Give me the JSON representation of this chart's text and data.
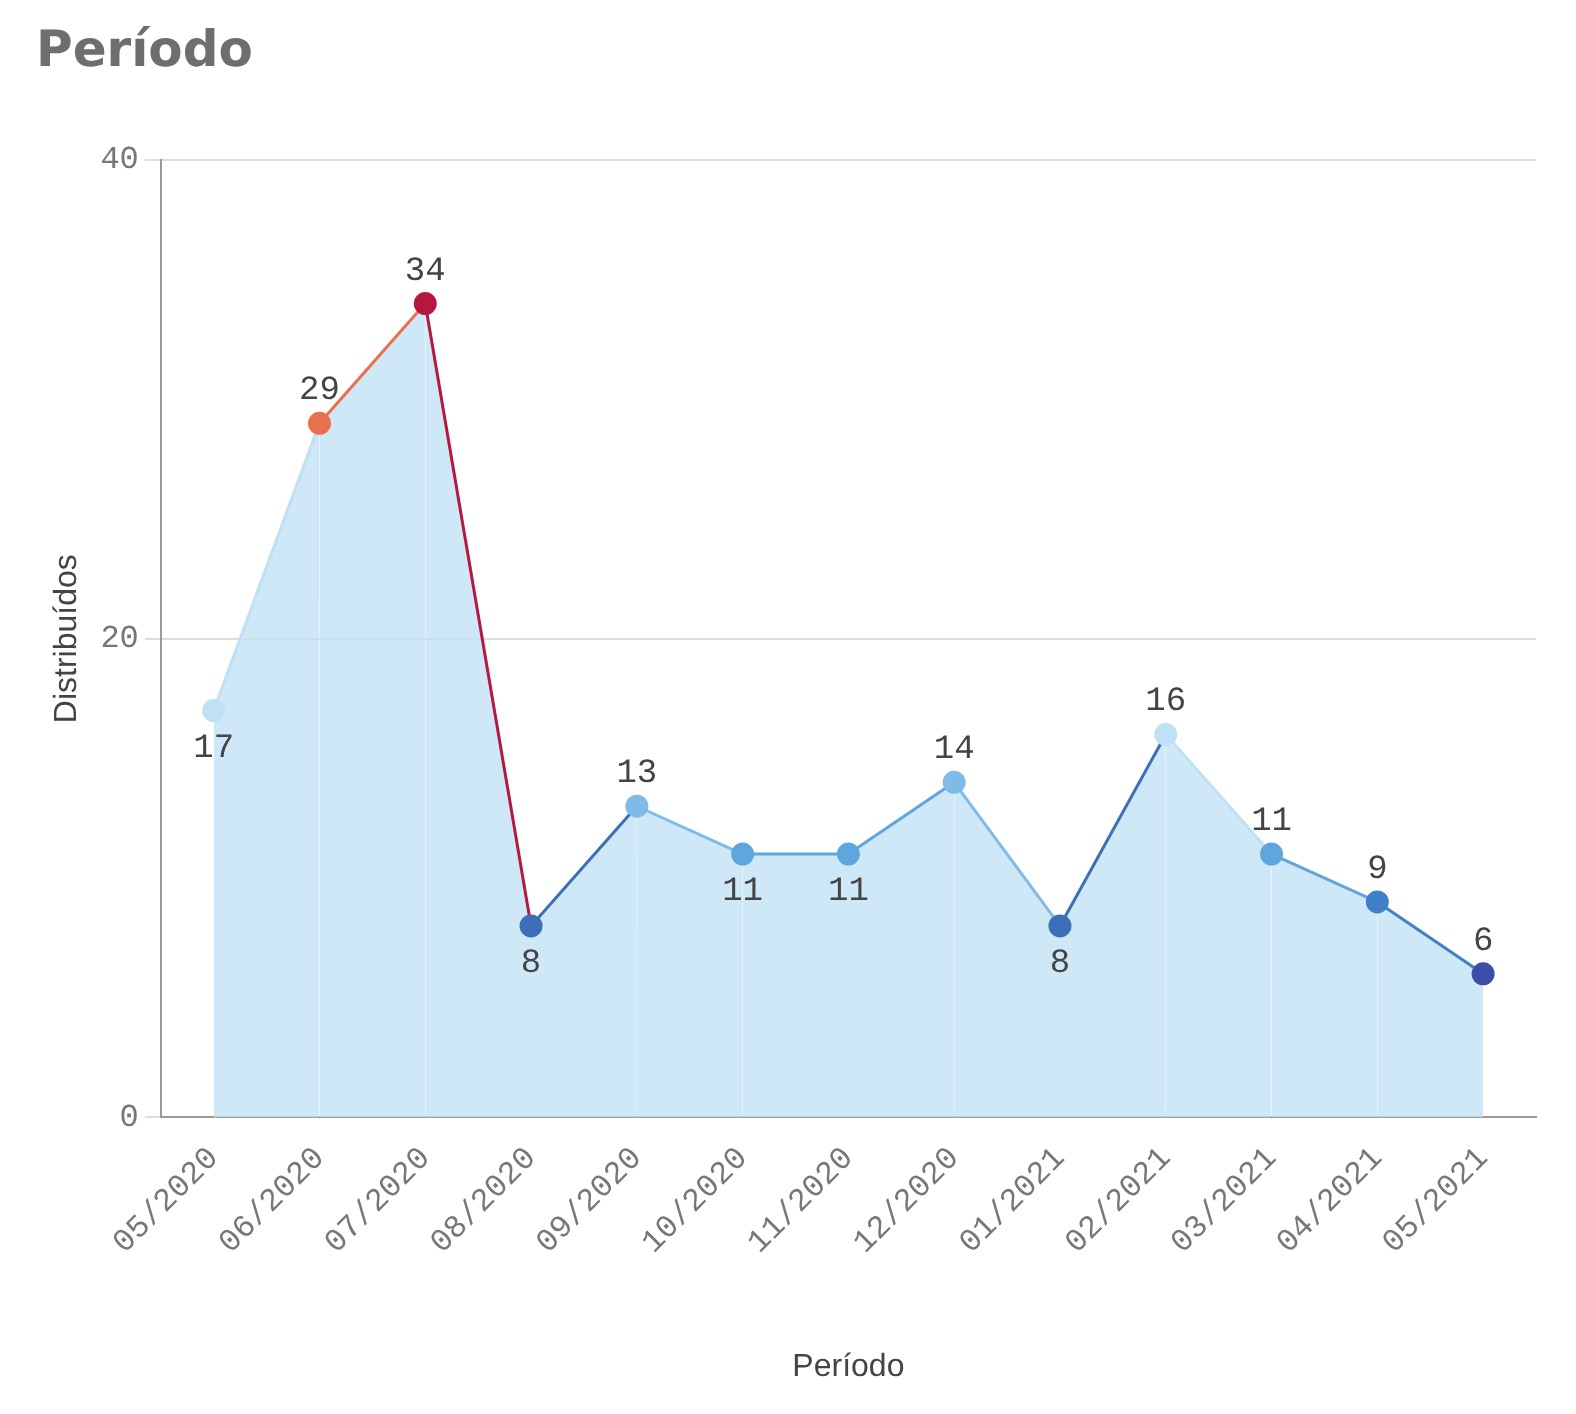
{
  "chart_data": {
    "type": "area",
    "title": "Período",
    "xlabel": "Período",
    "ylabel": "Distribuídos",
    "categories": [
      "05/2020",
      "06/2020",
      "07/2020",
      "08/2020",
      "09/2020",
      "10/2020",
      "11/2020",
      "12/2020",
      "01/2021",
      "02/2021",
      "03/2021",
      "04/2021",
      "05/2021"
    ],
    "values": [
      17,
      29,
      34,
      8,
      13,
      11,
      11,
      14,
      8,
      16,
      11,
      9,
      6
    ],
    "colors": [
      "#bfe0f5",
      "#e8704f",
      "#b5183f",
      "#3c6fb8",
      "#7fbbe8",
      "#5fa5de",
      "#5fa5de",
      "#7fbbe8",
      "#3c6fb8",
      "#bfe0f5",
      "#5fa5de",
      "#3f80c8",
      "#3b4fa8"
    ],
    "ylim": [
      0,
      40
    ],
    "yticks": [
      0,
      20,
      40
    ],
    "grid": "y",
    "data_labels": true,
    "marker": "circle",
    "legend": false
  }
}
